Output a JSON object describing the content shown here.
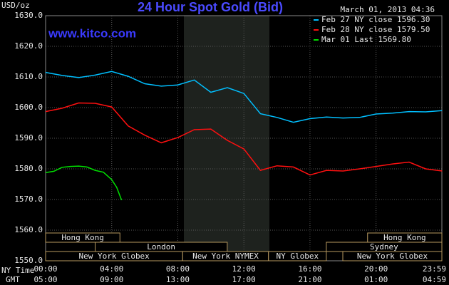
{
  "chart_data": {
    "type": "line",
    "title": "24 Hour Spot Gold (Bid)",
    "timestamp": "March 01, 2013 04:36",
    "watermark": "www.kitco.com",
    "y_label": "USD/oz",
    "x_label": "NY Time",
    "x2_label": "GMT",
    "grid": true,
    "ylim": [
      1550,
      1630
    ],
    "yticks": [
      {
        "value": 1550,
        "label": "1550.0"
      },
      {
        "value": 1560,
        "label": "1560.0"
      },
      {
        "value": 1570,
        "label": "1570.0"
      },
      {
        "value": 1580,
        "label": "1580.0"
      },
      {
        "value": 1590,
        "label": "1590.0"
      },
      {
        "value": 1600,
        "label": "1600.0"
      },
      {
        "value": 1610,
        "label": "1610.0"
      },
      {
        "value": 1620,
        "label": "1620.0"
      },
      {
        "value": 1630,
        "label": "1630.0"
      }
    ],
    "xlim": [
      0,
      23.983
    ],
    "xticks": [
      {
        "value": 0,
        "label": "00:00"
      },
      {
        "value": 4,
        "label": "04:00"
      },
      {
        "value": 8,
        "label": "08:00"
      },
      {
        "value": 12,
        "label": "12:00"
      },
      {
        "value": 16,
        "label": "16:00"
      },
      {
        "value": 20,
        "label": "20:00"
      },
      {
        "value": 23.983,
        "label": "23:59"
      }
    ],
    "x2tick_labels": [
      "05:00",
      "09:00",
      "13:00",
      "17:00",
      "21:00",
      "01:00",
      "04:59"
    ],
    "sessions": [
      "Hong Kong",
      "Hong Kong",
      "London",
      "Sydney",
      "New York Globex",
      "New York NYMEX",
      "NY Globex",
      "New York Globex"
    ],
    "series": [
      {
        "name": "Feb 27 NY close 1596.30",
        "color": "#00bfff",
        "x": [
          0,
          1,
          2,
          3,
          4,
          5,
          6,
          7,
          8,
          9,
          10,
          11,
          12,
          13,
          14,
          15,
          16,
          17,
          18,
          19,
          20,
          21,
          22,
          23,
          24
        ],
        "values": [
          1611.5,
          1610.5,
          1609.8,
          1610.6,
          1611.8,
          1610.2,
          1607.8,
          1607.0,
          1607.4,
          1609.0,
          1605.0,
          1606.5,
          1604.6,
          1598.0,
          1596.8,
          1595.2,
          1596.4,
          1596.9,
          1596.6,
          1596.8,
          1597.9,
          1598.2,
          1598.7,
          1598.6,
          1599.0
        ]
      },
      {
        "name": "Feb 28 NY close 1579.50",
        "color": "#ff1010",
        "x": [
          0,
          1,
          2,
          3,
          4,
          5,
          6,
          7,
          8,
          9,
          10,
          11,
          12,
          13,
          14,
          15,
          16,
          17,
          18,
          19,
          20,
          21,
          22,
          23,
          24
        ],
        "values": [
          1598.7,
          1599.8,
          1601.5,
          1601.4,
          1600.2,
          1594.0,
          1591.0,
          1588.5,
          1590.2,
          1592.8,
          1593.0,
          1589.3,
          1586.5,
          1579.5,
          1581.0,
          1580.6,
          1578.0,
          1579.5,
          1579.3,
          1580.0,
          1580.8,
          1581.6,
          1582.2,
          1580.0,
          1579.3
        ]
      },
      {
        "name": "Mar 01 Last 1569.80",
        "color": "#00e000",
        "x": [
          0,
          0.5,
          1,
          1.5,
          2,
          2.5,
          3,
          3.5,
          4,
          4.3,
          4.6
        ],
        "values": [
          1578.8,
          1579.2,
          1580.5,
          1580.8,
          1580.9,
          1580.6,
          1579.5,
          1578.9,
          1576.5,
          1574.0,
          1569.8
        ]
      }
    ]
  }
}
